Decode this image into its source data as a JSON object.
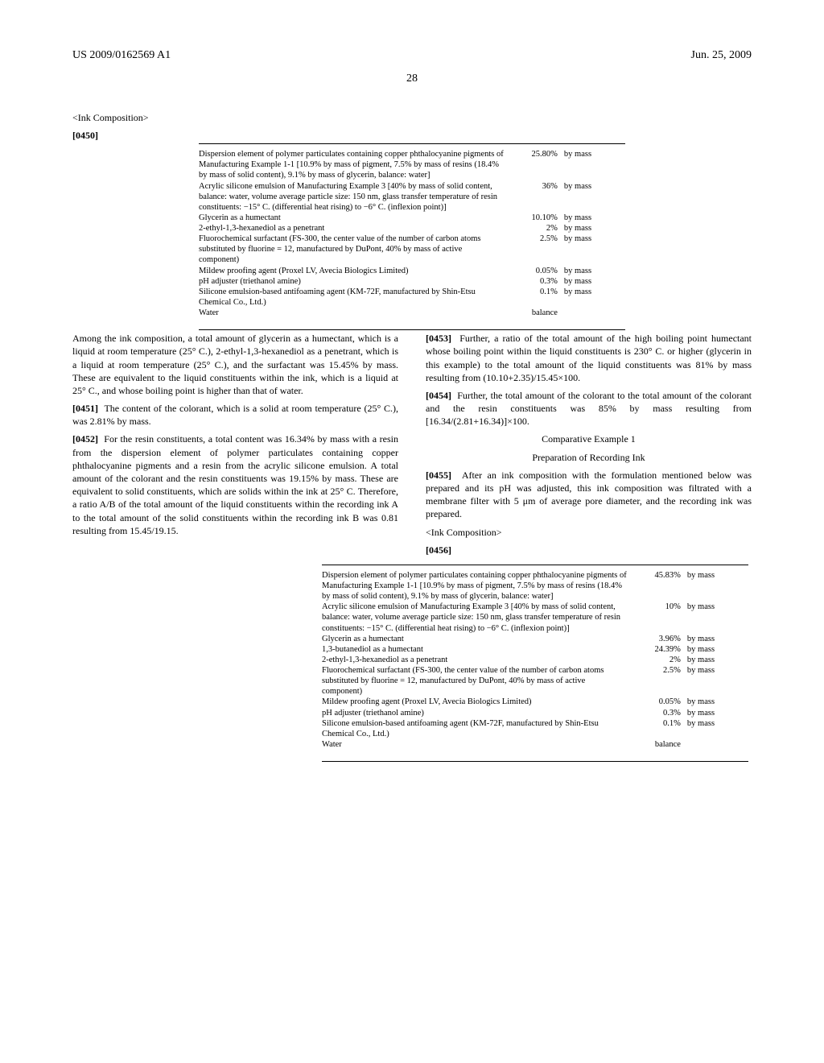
{
  "header": {
    "patent_number": "US 2009/0162569 A1",
    "date": "Jun. 25, 2009",
    "page": "28"
  },
  "section_title_1": "<Ink Composition>",
  "para_0450": "[0450]",
  "table1": {
    "rows": [
      {
        "desc": "Dispersion element of polymer particulates containing copper phthalocyanine pigments of Manufacturing Example 1-1 [10.9% by mass of pigment, 7.5% by mass of resins (18.4% by mass of solid content), 9.1% by mass of glycerin, balance: water]",
        "val": "25.80%",
        "unit": "by mass"
      },
      {
        "desc": "Acrylic silicone emulsion of Manufacturing Example 3 [40% by mass of solid content, balance: water, volume average particle size: 150 nm, glass transfer temperature of resin constituents: −15° C. (differential heat rising) to −6° C. (inflexion point)]",
        "val": "36%",
        "unit": "by mass"
      },
      {
        "desc": "Glycerin as a humectant",
        "val": "10.10%",
        "unit": "by mass"
      },
      {
        "desc": "2-ethyl-1,3-hexanediol as a penetrant",
        "val": "2%",
        "unit": "by mass"
      },
      {
        "desc": "Fluorochemical surfactant (FS-300, the center value of the number of carbon atoms substituted by fluorine = 12, manufactured by DuPont, 40% by mass of active component)",
        "val": "2.5%",
        "unit": "by mass"
      },
      {
        "desc": "Mildew proofing agent (Proxel LV, Avecia Biologics Limited)",
        "val": "0.05%",
        "unit": "by mass"
      },
      {
        "desc": "pH adjuster (triethanol amine)",
        "val": "0.3%",
        "unit": "by mass"
      },
      {
        "desc": "Silicone emulsion-based antifoaming agent (KM-72F, manufactured by Shin-Etsu Chemical Co., Ltd.)",
        "val": "0.1%",
        "unit": "by mass"
      },
      {
        "desc": "Water",
        "val": "balance",
        "unit": ""
      }
    ]
  },
  "body": {
    "p_after_table1": "Among the ink composition, a total amount of glycerin as a humectant, which is a liquid at room temperature (25° C.), 2-ethyl-1,3-hexanediol as a penetrant, which is a liquid at room temperature (25° C.), and the surfactant was 15.45% by mass. These are equivalent to the liquid constituents within the ink, which is a liquid at 25° C., and whose boiling point is higher than that of water.",
    "p_0451_label": "[0451]",
    "p_0451_text": "The content of the colorant, which is a solid at room temperature (25° C.), was 2.81% by mass.",
    "p_0452_label": "[0452]",
    "p_0452_text": "For the resin constituents, a total content was 16.34% by mass with a resin from the dispersion element of polymer particulates containing copper phthalocyanine pigments and a resin from the acrylic silicone emulsion. A total amount of the colorant and the resin constituents was 19.15% by mass. These are equivalent to solid constituents, which are solids within the ink at 25° C. Therefore, a ratio A/B of the total amount of the liquid constituents within the recording ink A to the total amount of the solid constituents within the recording ink B was 0.81 resulting from 15.45/19.15.",
    "p_0453_label": "[0453]",
    "p_0453_text": "Further, a ratio of the total amount of the high boiling point humectant whose boiling point within the liquid constituents is 230° C. or higher (glycerin in this example) to the total amount of the liquid constituents was 81% by mass resulting from (10.10+2.35)/15.45×100.",
    "p_0454_label": "[0454]",
    "p_0454_text": "Further, the total amount of the colorant to the total amount of the colorant and the resin constituents was 85% by mass resulting from [16.34/(2.81+16.34)]×100.",
    "comp_example_1": "Comparative Example 1",
    "prep_heading": "Preparation of Recording Ink",
    "p_0455_label": "[0455]",
    "p_0455_text": "After an ink composition with the formulation mentioned below was prepared and its pH was adjusted, this ink composition was filtrated with a membrane filter with 5 μm of average pore diameter, and the recording ink was prepared.",
    "section_title_2": "<Ink Composition>",
    "p_0456_label": "[0456]"
  },
  "table2": {
    "rows": [
      {
        "desc": "Dispersion element of polymer particulates containing copper phthalocyanine pigments of Manufacturing Example 1-1 [10.9% by mass of pigment, 7.5% by mass of resins (18.4% by mass of solid content), 9.1% by mass of glycerin, balance: water]",
        "val": "45.83%",
        "unit": "by mass"
      },
      {
        "desc": "Acrylic silicone emulsion of Manufacturing Example 3 [40% by mass of solid content, balance: water, volume average particle size: 150 nm, glass transfer temperature of resin constituents: −15° C. (differential heat rising) to −6° C. (inflexion point)]",
        "val": "10%",
        "unit": "by mass"
      },
      {
        "desc": "Glycerin as a humectant",
        "val": "3.96%",
        "unit": "by mass"
      },
      {
        "desc": "1,3-butanediol as a humectant",
        "val": "24.39%",
        "unit": "by mass"
      },
      {
        "desc": "2-ethyl-1,3-hexanediol as a penetrant",
        "val": "2%",
        "unit": "by mass"
      },
      {
        "desc": "Fluorochemical surfactant (FS-300, the center value of the number of carbon atoms substituted by fluorine = 12, manufactured by DuPont, 40% by mass of active component)",
        "val": "2.5%",
        "unit": "by mass"
      },
      {
        "desc": "Mildew proofing agent (Proxel LV, Avecia Biologics Limited)",
        "val": "0.05%",
        "unit": "by mass"
      },
      {
        "desc": "pH adjuster (triethanol amine)",
        "val": "0.3%",
        "unit": "by mass"
      },
      {
        "desc": "Silicone emulsion-based antifoaming agent (KM-72F, manufactured by Shin-Etsu Chemical Co., Ltd.)",
        "val": "0.1%",
        "unit": "by mass"
      },
      {
        "desc": "Water",
        "val": "balance",
        "unit": ""
      }
    ]
  }
}
